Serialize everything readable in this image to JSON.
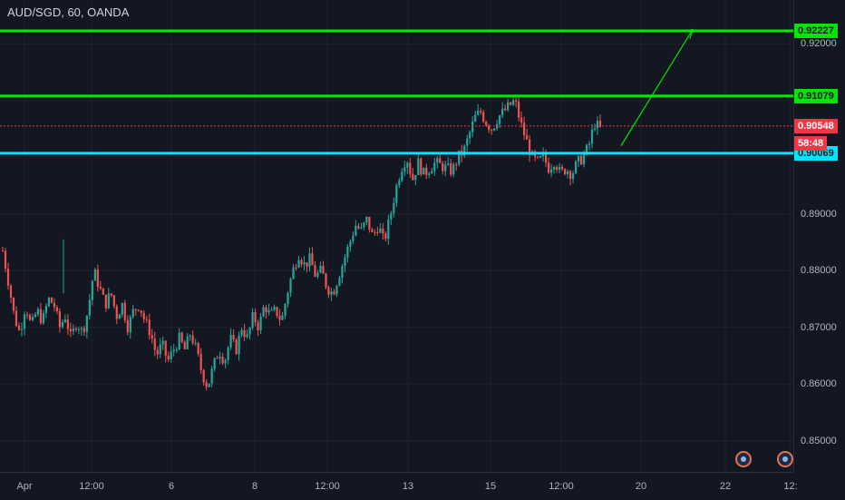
{
  "header": {
    "symbol": "AUD/SGD, 60, OANDA"
  },
  "levels": {
    "upper_target": {
      "value": "0.92227",
      "color": "#00e600"
    },
    "resistance": {
      "value": "0.91079",
      "color": "#00e600"
    },
    "support": {
      "value": "0.90069",
      "color": "#00e5ff"
    },
    "last_price": {
      "value": "0.90548",
      "color": "#f23645"
    },
    "countdown": "58:48"
  },
  "colors": {
    "up": "#26a69a",
    "down": "#ef5350",
    "arrow": "#00e600",
    "background": "#131722"
  },
  "chart_data": {
    "type": "candlestick",
    "title": "AUD/SGD, 60, OANDA",
    "ylim": [
      0.8445,
      0.9277
    ],
    "y_ticks": [
      "0.92000",
      "0.91000",
      "0.90000",
      "0.89000",
      "0.88000",
      "0.87000",
      "0.86000",
      "0.85000"
    ],
    "x_ticks": [
      "Apr",
      "12:00",
      "6",
      "8",
      "12:00",
      "13",
      "15",
      "12:00",
      "20",
      "22",
      "12:"
    ],
    "horizontal_lines": [
      0.92227,
      0.91079,
      0.90069,
      0.90548
    ],
    "arrow": {
      "from": [
        0.902,
        "15 18:00"
      ],
      "to": [
        0.9225,
        "21 12:00"
      ],
      "icon": "arrow-up-right-icon"
    },
    "path": [
      [
        0.8835,
        0.878,
        0.872,
        0.869,
        0.874,
        0.87,
        0.873,
        0.871,
        0.875
      ],
      [
        0.874,
        0.87,
        0.872,
        0.868,
        0.871,
        0.869,
        0.873,
        0.88
      ],
      [
        0.877,
        0.874,
        0.876,
        0.872,
        0.874,
        0.87,
        0.873,
        0.874,
        0.871
      ],
      [
        0.869,
        0.865,
        0.867,
        0.864,
        0.866,
        0.868,
        0.866,
        0.869
      ],
      [
        0.866,
        0.862,
        0.8595,
        0.863,
        0.866,
        0.864,
        0.868,
        0.866,
        0.87
      ],
      [
        0.868,
        0.872,
        0.87,
        0.874,
        0.872,
        0.873,
        0.871,
        0.876,
        0.88
      ],
      [
        0.883,
        0.881,
        0.882,
        0.879,
        0.88,
        0.877,
        0.876,
        0.879,
        0.882
      ],
      [
        0.885,
        0.888,
        0.887,
        0.889,
        0.886,
        0.888,
        0.885,
        0.889
      ],
      [
        0.894,
        0.898,
        0.9,
        0.896,
        0.899,
        0.897,
        0.898,
        0.899
      ],
      [
        0.8985,
        0.898,
        0.8975,
        0.9,
        0.901,
        0.904
      ],
      [
        0.907,
        0.908,
        0.906,
        0.905,
        0.907,
        0.908,
        0.909,
        0.91
      ],
      [
        0.906,
        0.903,
        0.9,
        0.899,
        0.9,
        0.898,
        0.8995,
        0.897
      ],
      [
        0.898,
        0.897,
        0.899,
        0.9,
        0.902,
        0.906,
        0.905
      ]
    ]
  },
  "events": {
    "icon": "economic-event-icon",
    "count": 2
  }
}
